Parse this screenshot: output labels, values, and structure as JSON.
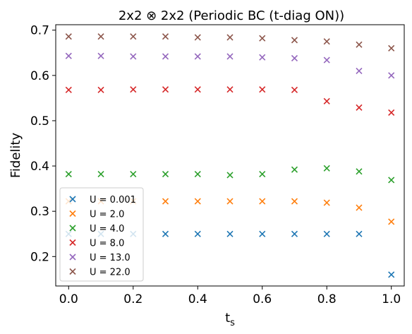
{
  "chart_data": {
    "type": "scatter",
    "title": "2x2 ⊗ 2x2 (Periodic BC (t-diag ON))",
    "xlabel": "t",
    "xlabel_sub": "s",
    "ylabel": "Fidelity",
    "xlim": [
      -0.04,
      1.04
    ],
    "ylim": [
      0.135,
      0.712
    ],
    "xticks": [
      "0.0",
      "0.2",
      "0.4",
      "0.6",
      "0.8",
      "1.0"
    ],
    "yticks": [
      "0.2",
      "0.3",
      "0.4",
      "0.5",
      "0.6",
      "0.7"
    ],
    "grid": false,
    "legend_position": "lower-left",
    "marker": "x",
    "x": [
      0.0,
      0.1,
      0.2,
      0.3,
      0.4,
      0.5,
      0.6,
      0.7,
      0.8,
      0.9,
      1.0
    ],
    "series": [
      {
        "name": "U = 0.001",
        "color": "#1f77b4",
        "values": [
          0.25,
          0.25,
          0.25,
          0.25,
          0.25,
          0.25,
          0.25,
          0.25,
          0.25,
          0.25,
          0.16
        ]
      },
      {
        "name": "U = 2.0",
        "color": "#ff7f0e",
        "values": [
          0.322,
          0.322,
          0.322,
          0.322,
          0.322,
          0.322,
          0.322,
          0.322,
          0.319,
          0.308,
          0.277
        ]
      },
      {
        "name": "U = 4.0",
        "color": "#2ca02c",
        "values": [
          0.382,
          0.382,
          0.382,
          0.382,
          0.382,
          0.38,
          0.382,
          0.392,
          0.395,
          0.388,
          0.369
        ]
      },
      {
        "name": "U = 8.0",
        "color": "#d62728",
        "values": [
          0.568,
          0.568,
          0.569,
          0.569,
          0.569,
          0.569,
          0.569,
          0.568,
          0.543,
          0.529,
          0.518
        ]
      },
      {
        "name": "U = 13.0",
        "color": "#9467bd",
        "values": [
          0.643,
          0.643,
          0.642,
          0.642,
          0.642,
          0.642,
          0.64,
          0.638,
          0.634,
          0.61,
          0.6
        ]
      },
      {
        "name": "U = 22.0",
        "color": "#8c564b",
        "values": [
          0.686,
          0.686,
          0.686,
          0.686,
          0.684,
          0.684,
          0.682,
          0.678,
          0.675,
          0.668,
          0.66
        ]
      }
    ]
  }
}
